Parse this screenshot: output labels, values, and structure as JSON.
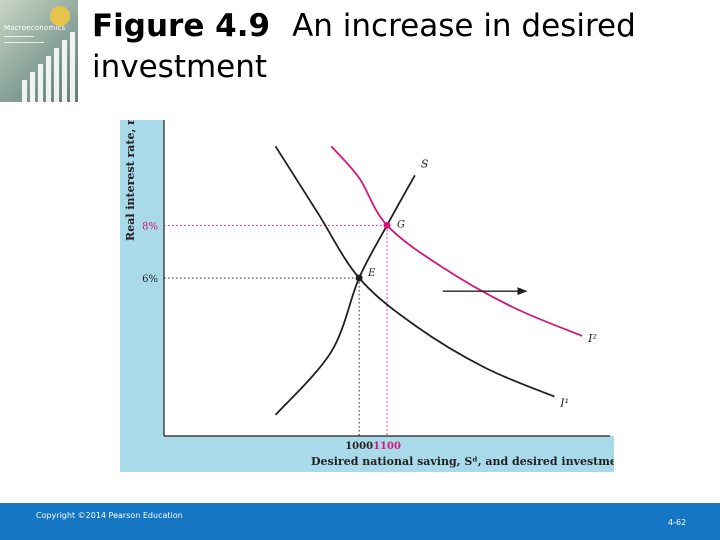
{
  "slide": {
    "figure_number": "Figure 4.9",
    "title": "An increase in desired investment",
    "book_cover_title": "Macroeconomics"
  },
  "footer": {
    "copyright": "Copyright ©2014 Pearson Education",
    "page_number": "4-62"
  },
  "colors": {
    "footer_blue": "#1576c4",
    "panel_blue": "#a9daea",
    "shifted_curve": "#d6157a",
    "original_curve": "#231f20"
  },
  "chart_data": {
    "type": "line",
    "ylabel": "Real interest rate, r",
    "xlabel": "Desired national saving, Sᵈ, and desired investment, Iᵈ",
    "y_ticks": [
      {
        "label": "6%",
        "value": 6
      },
      {
        "label": "8%",
        "value": 8
      }
    ],
    "x_ticks": [
      {
        "label": "1000",
        "value": 1000
      },
      {
        "label": "1100",
        "value": 1100
      }
    ],
    "xlim": [
      300,
      1900
    ],
    "ylim": [
      0,
      12
    ],
    "series": [
      {
        "name": "S",
        "color": "#231f20",
        "points": [
          [
            700,
            0.8
          ],
          [
            900,
            3.2
          ],
          [
            1000,
            6
          ],
          [
            1100,
            8
          ],
          [
            1200,
            9.9
          ]
        ]
      },
      {
        "name": "I¹",
        "color": "#231f20",
        "points": [
          [
            700,
            11
          ],
          [
            850,
            8.5
          ],
          [
            1000,
            6
          ],
          [
            1200,
            4.2
          ],
          [
            1450,
            2.6
          ],
          [
            1700,
            1.5
          ]
        ]
      },
      {
        "name": "I²",
        "color": "#d6157a",
        "points": [
          [
            900,
            11
          ],
          [
            1000,
            9.8
          ],
          [
            1100,
            8
          ],
          [
            1300,
            6.4
          ],
          [
            1550,
            4.9
          ],
          [
            1800,
            3.8
          ]
        ]
      }
    ],
    "points": [
      {
        "label": "E",
        "x": 1000,
        "y": 6,
        "color": "#231f20"
      },
      {
        "label": "G",
        "x": 1100,
        "y": 8,
        "color": "#d6157a"
      }
    ],
    "annotations": [
      "shift arrow from I¹ to I²"
    ],
    "grid": false
  }
}
